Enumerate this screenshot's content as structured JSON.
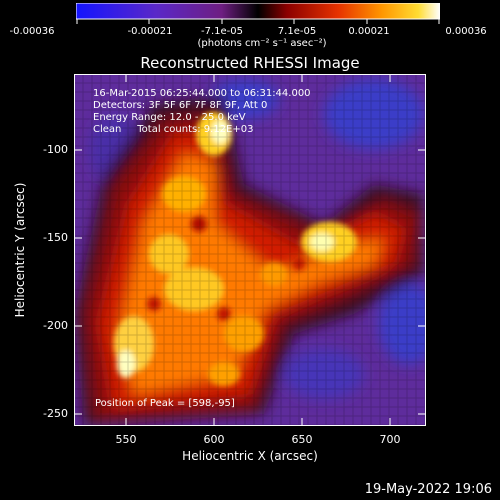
{
  "colorbar": {
    "ticks": [
      "-0.00036",
      "-0.00021",
      "-7.1e-05",
      "7.1e-05",
      "0.00021",
      "0.00036"
    ],
    "units": "(photons cm⁻² s⁻¹ asec⁻²)",
    "colors": [
      "#1414ff",
      "#5a28c8",
      "#6e1e82",
      "#000000",
      "#8c0000",
      "#e63200",
      "#ff9600",
      "#ffdc32",
      "#ffffff"
    ]
  },
  "title": "Reconstructed RHESSI Image",
  "info": {
    "line1": "16-Mar-2015 06:25:44.000 to 06:31:44.000",
    "line2": "Detectors: 3F 5F 6F 7F 8F 9F, Att 0",
    "line3": "Energy Range: 12.0 - 25.0 keV",
    "line4": "Clean     Total counts: 9.12E+03"
  },
  "peak": "Position of Peak = [598,-95]",
  "axes": {
    "xlabel": "Heliocentric X (arcsec)",
    "ylabel": "Heliocentric Y (arcsec)",
    "xticks": [
      "550",
      "600",
      "650",
      "700"
    ],
    "yticks": [
      "-100",
      "-150",
      "-200",
      "-250"
    ]
  },
  "timestamp": "19-May-2022 19:06"
}
